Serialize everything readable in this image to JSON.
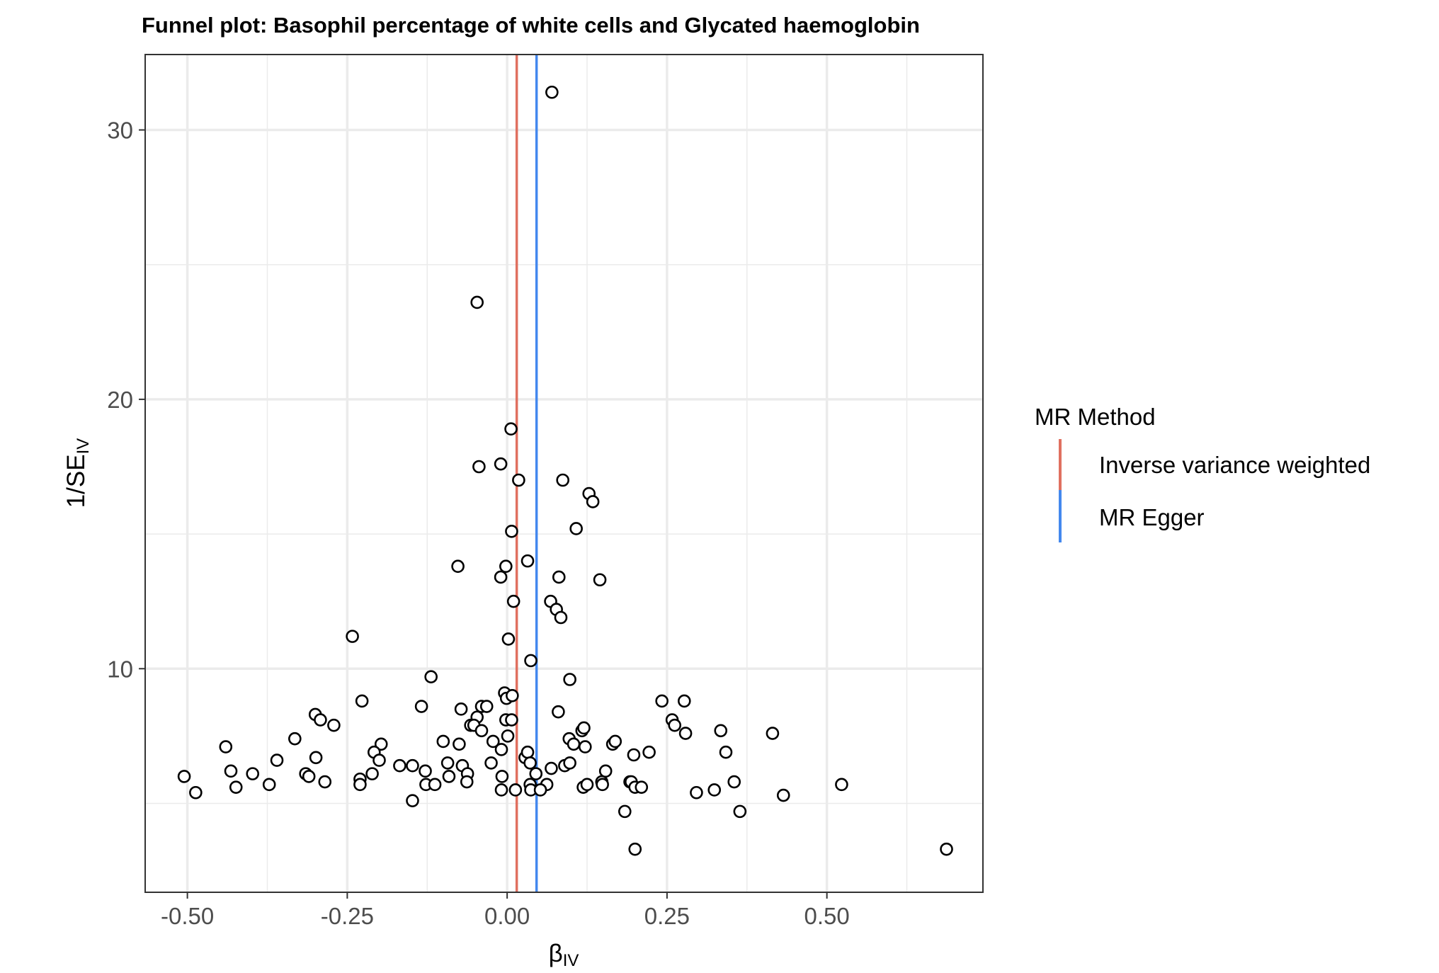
{
  "chart_data": {
    "type": "scatter",
    "title": "Funnel plot: Basophil percentage of white cells and Glycated haemoglobin",
    "xlabel": "β",
    "xlabel_sub": "IV",
    "ylabel": "1/SE",
    "ylabel_sub": "IV",
    "xlim": [
      -0.566,
      0.744
    ],
    "ylim": [
      1.7,
      32.8
    ],
    "x_ticks": [
      -0.5,
      -0.25,
      0.0,
      0.25,
      0.5
    ],
    "x_tick_labels": [
      "-0.50",
      "-0.25",
      "0.00",
      "0.25",
      "0.50"
    ],
    "y_ticks": [
      10,
      20,
      30
    ],
    "y_tick_labels": [
      "10",
      "20",
      "30"
    ],
    "grid": true,
    "legend": {
      "title": "MR Method",
      "position": "right",
      "items": [
        {
          "label": "Inverse variance weighted",
          "color": "#E07060"
        },
        {
          "label": "MR Egger",
          "color": "#4488EE"
        }
      ]
    },
    "vlines": [
      {
        "method": "Inverse variance weighted",
        "x": 0.015,
        "color": "#E07060"
      },
      {
        "method": "MR Egger",
        "x": 0.046,
        "color": "#4488EE"
      }
    ],
    "points": [
      {
        "x": 0.07,
        "y": 31.4
      },
      {
        "x": -0.047,
        "y": 23.6
      },
      {
        "x": 0.006,
        "y": 18.9
      },
      {
        "x": -0.01,
        "y": 17.6
      },
      {
        "x": -0.044,
        "y": 17.5
      },
      {
        "x": 0.018,
        "y": 17.0
      },
      {
        "x": 0.087,
        "y": 17.0
      },
      {
        "x": 0.128,
        "y": 16.5
      },
      {
        "x": 0.134,
        "y": 16.2
      },
      {
        "x": 0.007,
        "y": 15.1
      },
      {
        "x": 0.108,
        "y": 15.2
      },
      {
        "x": -0.077,
        "y": 13.8
      },
      {
        "x": -0.002,
        "y": 13.8
      },
      {
        "x": 0.032,
        "y": 14.0
      },
      {
        "x": -0.01,
        "y": 13.4
      },
      {
        "x": 0.081,
        "y": 13.4
      },
      {
        "x": 0.145,
        "y": 13.3
      },
      {
        "x": 0.01,
        "y": 12.5
      },
      {
        "x": 0.068,
        "y": 12.5
      },
      {
        "x": 0.077,
        "y": 12.2
      },
      {
        "x": 0.084,
        "y": 11.9
      },
      {
        "x": -0.242,
        "y": 11.2
      },
      {
        "x": 0.002,
        "y": 11.1
      },
      {
        "x": 0.037,
        "y": 10.3
      },
      {
        "x": -0.119,
        "y": 9.7
      },
      {
        "x": 0.098,
        "y": 9.6
      },
      {
        "x": -0.004,
        "y": 9.1
      },
      {
        "x": -0.001,
        "y": 8.9
      },
      {
        "x": 0.008,
        "y": 9.0
      },
      {
        "x": -0.227,
        "y": 8.8
      },
      {
        "x": 0.242,
        "y": 8.8
      },
      {
        "x": 0.277,
        "y": 8.8
      },
      {
        "x": -0.134,
        "y": 8.6
      },
      {
        "x": -0.04,
        "y": 8.6
      },
      {
        "x": -0.032,
        "y": 8.6
      },
      {
        "x": -0.072,
        "y": 8.5
      },
      {
        "x": 0.08,
        "y": 8.4
      },
      {
        "x": -0.3,
        "y": 8.3
      },
      {
        "x": -0.292,
        "y": 8.1
      },
      {
        "x": -0.047,
        "y": 8.2
      },
      {
        "x": -0.002,
        "y": 8.1
      },
      {
        "x": 0.007,
        "y": 8.1
      },
      {
        "x": -0.271,
        "y": 7.9
      },
      {
        "x": -0.057,
        "y": 7.9
      },
      {
        "x": -0.052,
        "y": 7.9
      },
      {
        "x": 0.258,
        "y": 8.1
      },
      {
        "x": 0.262,
        "y": 7.9
      },
      {
        "x": 0.117,
        "y": 7.7
      },
      {
        "x": 0.12,
        "y": 7.8
      },
      {
        "x": 0.279,
        "y": 7.6
      },
      {
        "x": 0.334,
        "y": 7.7
      },
      {
        "x": 0.415,
        "y": 7.6
      },
      {
        "x": -0.04,
        "y": 7.7
      },
      {
        "x": 0.001,
        "y": 7.5
      },
      {
        "x": -0.332,
        "y": 7.4
      },
      {
        "x": -0.1,
        "y": 7.3
      },
      {
        "x": -0.075,
        "y": 7.2
      },
      {
        "x": -0.022,
        "y": 7.3
      },
      {
        "x": 0.097,
        "y": 7.4
      },
      {
        "x": 0.104,
        "y": 7.2
      },
      {
        "x": 0.122,
        "y": 7.1
      },
      {
        "x": 0.165,
        "y": 7.2
      },
      {
        "x": 0.169,
        "y": 7.3
      },
      {
        "x": -0.44,
        "y": 7.1
      },
      {
        "x": -0.197,
        "y": 7.2
      },
      {
        "x": -0.208,
        "y": 6.9
      },
      {
        "x": 0.028,
        "y": 6.7
      },
      {
        "x": 0.032,
        "y": 6.9
      },
      {
        "x": -0.009,
        "y": 7.0
      },
      {
        "x": 0.198,
        "y": 6.8
      },
      {
        "x": 0.222,
        "y": 6.9
      },
      {
        "x": 0.342,
        "y": 6.9
      },
      {
        "x": -0.36,
        "y": 6.6
      },
      {
        "x": -0.299,
        "y": 6.7
      },
      {
        "x": -0.2,
        "y": 6.6
      },
      {
        "x": -0.168,
        "y": 6.4
      },
      {
        "x": -0.148,
        "y": 6.4
      },
      {
        "x": -0.093,
        "y": 6.5
      },
      {
        "x": -0.07,
        "y": 6.4
      },
      {
        "x": -0.025,
        "y": 6.5
      },
      {
        "x": 0.036,
        "y": 6.5
      },
      {
        "x": 0.069,
        "y": 6.3
      },
      {
        "x": 0.09,
        "y": 6.4
      },
      {
        "x": 0.098,
        "y": 6.5
      },
      {
        "x": -0.432,
        "y": 6.2
      },
      {
        "x": -0.315,
        "y": 6.1
      },
      {
        "x": -0.31,
        "y": 6.0
      },
      {
        "x": -0.211,
        "y": 6.1
      },
      {
        "x": -0.128,
        "y": 6.2
      },
      {
        "x": -0.062,
        "y": 6.1
      },
      {
        "x": 0.045,
        "y": 6.1
      },
      {
        "x": 0.154,
        "y": 6.2
      },
      {
        "x": -0.398,
        "y": 6.1
      },
      {
        "x": -0.505,
        "y": 6.0
      },
      {
        "x": -0.091,
        "y": 6.0
      },
      {
        "x": -0.008,
        "y": 6.0
      },
      {
        "x": -0.23,
        "y": 5.9
      },
      {
        "x": -0.285,
        "y": 5.8
      },
      {
        "x": -0.372,
        "y": 5.7
      },
      {
        "x": -0.424,
        "y": 5.6
      },
      {
        "x": -0.23,
        "y": 5.7
      },
      {
        "x": -0.127,
        "y": 5.7
      },
      {
        "x": -0.113,
        "y": 5.7
      },
      {
        "x": -0.063,
        "y": 5.8
      },
      {
        "x": 0.036,
        "y": 5.7
      },
      {
        "x": 0.062,
        "y": 5.7
      },
      {
        "x": 0.148,
        "y": 5.8
      },
      {
        "x": 0.149,
        "y": 5.7
      },
      {
        "x": 0.192,
        "y": 5.8
      },
      {
        "x": 0.194,
        "y": 5.8
      },
      {
        "x": 0.2,
        "y": 5.6
      },
      {
        "x": 0.21,
        "y": 5.6
      },
      {
        "x": 0.355,
        "y": 5.8
      },
      {
        "x": 0.523,
        "y": 5.7
      },
      {
        "x": 0.119,
        "y": 5.6
      },
      {
        "x": 0.125,
        "y": 5.7
      },
      {
        "x": -0.009,
        "y": 5.5
      },
      {
        "x": 0.013,
        "y": 5.5
      },
      {
        "x": 0.037,
        "y": 5.5
      },
      {
        "x": 0.052,
        "y": 5.5
      },
      {
        "x": -0.487,
        "y": 5.4
      },
      {
        "x": 0.296,
        "y": 5.4
      },
      {
        "x": 0.324,
        "y": 5.5
      },
      {
        "x": 0.432,
        "y": 5.3
      },
      {
        "x": -0.148,
        "y": 5.1
      },
      {
        "x": 0.184,
        "y": 4.7
      },
      {
        "x": 0.364,
        "y": 4.7
      },
      {
        "x": 0.2,
        "y": 3.3
      },
      {
        "x": 0.687,
        "y": 3.3
      }
    ]
  }
}
